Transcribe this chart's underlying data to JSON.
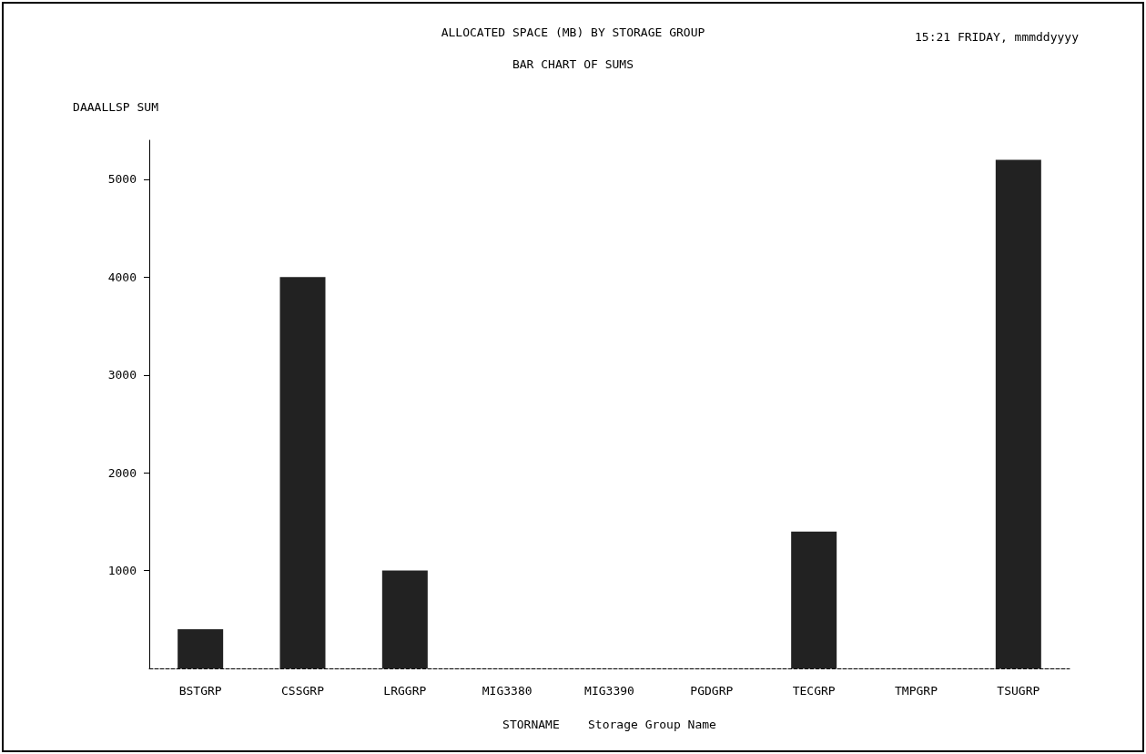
{
  "chart_data": {
    "type": "bar",
    "title": "ALLOCATED SPACE (MB) BY STORAGE GROUP",
    "subtitle": "BAR CHART OF SUMS",
    "annotations": [
      "15:21 FRIDAY, mmmddyyyy"
    ],
    "ylabel": "DAAALLSP SUM",
    "xlabel": "STORNAME    Storage Group Name",
    "categories": [
      "BSTGRP",
      "CSSGRP",
      "LRGGRP",
      "MIG3380",
      "MIG3390",
      "PGDGRP",
      "TECGRP",
      "TMPGRP",
      "TSUGRP"
    ],
    "values": [
      400,
      4000,
      1000,
      0,
      0,
      0,
      1400,
      0,
      5200
    ],
    "color": "#222222",
    "ylim": [
      0,
      5400
    ],
    "yticks": [
      1000,
      2000,
      3000,
      4000,
      5000
    ],
    "grid": false
  }
}
